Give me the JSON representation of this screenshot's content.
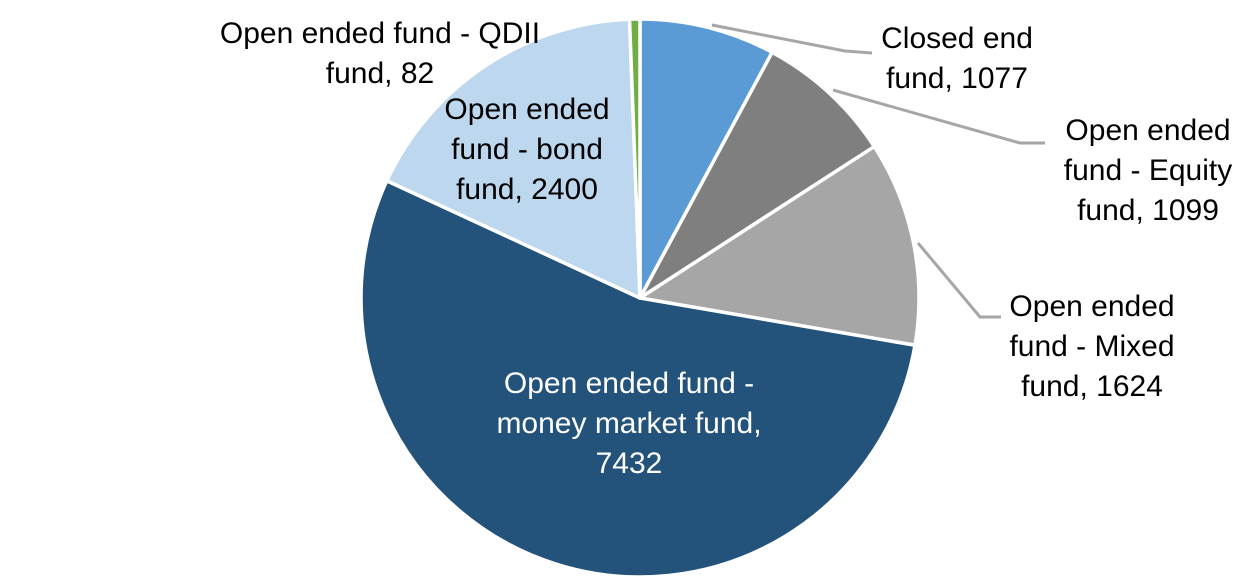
{
  "chart_data": {
    "type": "pie",
    "title": "",
    "total": 13714,
    "start_angle_deg": 0,
    "direction": "clockwise",
    "background": "#FFFFFF",
    "slice_border_color": "#FFFFFF",
    "leader_line_color": "#A6A6A6",
    "legend": "none",
    "slices": [
      {
        "id": "closed_end",
        "label": "Closed end fund",
        "value": 1077,
        "color": "#5B9BD5",
        "label_position": "outside",
        "label_color": "#000000",
        "callout": "Closed end\nfund, 1077"
      },
      {
        "id": "equity",
        "label": "Open ended fund - Equity fund",
        "value": 1099,
        "color": "#7F7F7F",
        "label_position": "outside",
        "label_color": "#000000",
        "callout": "Open ended\nfund - Equity\nfund, 1099"
      },
      {
        "id": "mixed",
        "label": "Open ended fund - Mixed fund",
        "value": 1624,
        "color": "#A6A6A6",
        "label_position": "outside",
        "label_color": "#000000",
        "callout": "Open ended\nfund - Mixed\nfund, 1624"
      },
      {
        "id": "money_market",
        "label": "Open ended fund - money market fund",
        "value": 7432,
        "color": "#23527A",
        "label_position": "inside",
        "label_color": "#FFFFFF",
        "callout": "Open ended fund -\nmoney market fund,\n7432"
      },
      {
        "id": "bond",
        "label": "Open ended fund - bond fund",
        "value": 2400,
        "color": "#BDD7EE",
        "label_position": "outside",
        "label_color": "#000000",
        "callout": "Open ended\nfund - bond\nfund, 2400"
      },
      {
        "id": "qdii",
        "label": "Open ended fund - QDII fund",
        "value": 82,
        "color": "#70AD47",
        "label_position": "outside",
        "label_color": "#000000",
        "callout": "Open ended fund - QDII\nfund, 82"
      }
    ]
  }
}
